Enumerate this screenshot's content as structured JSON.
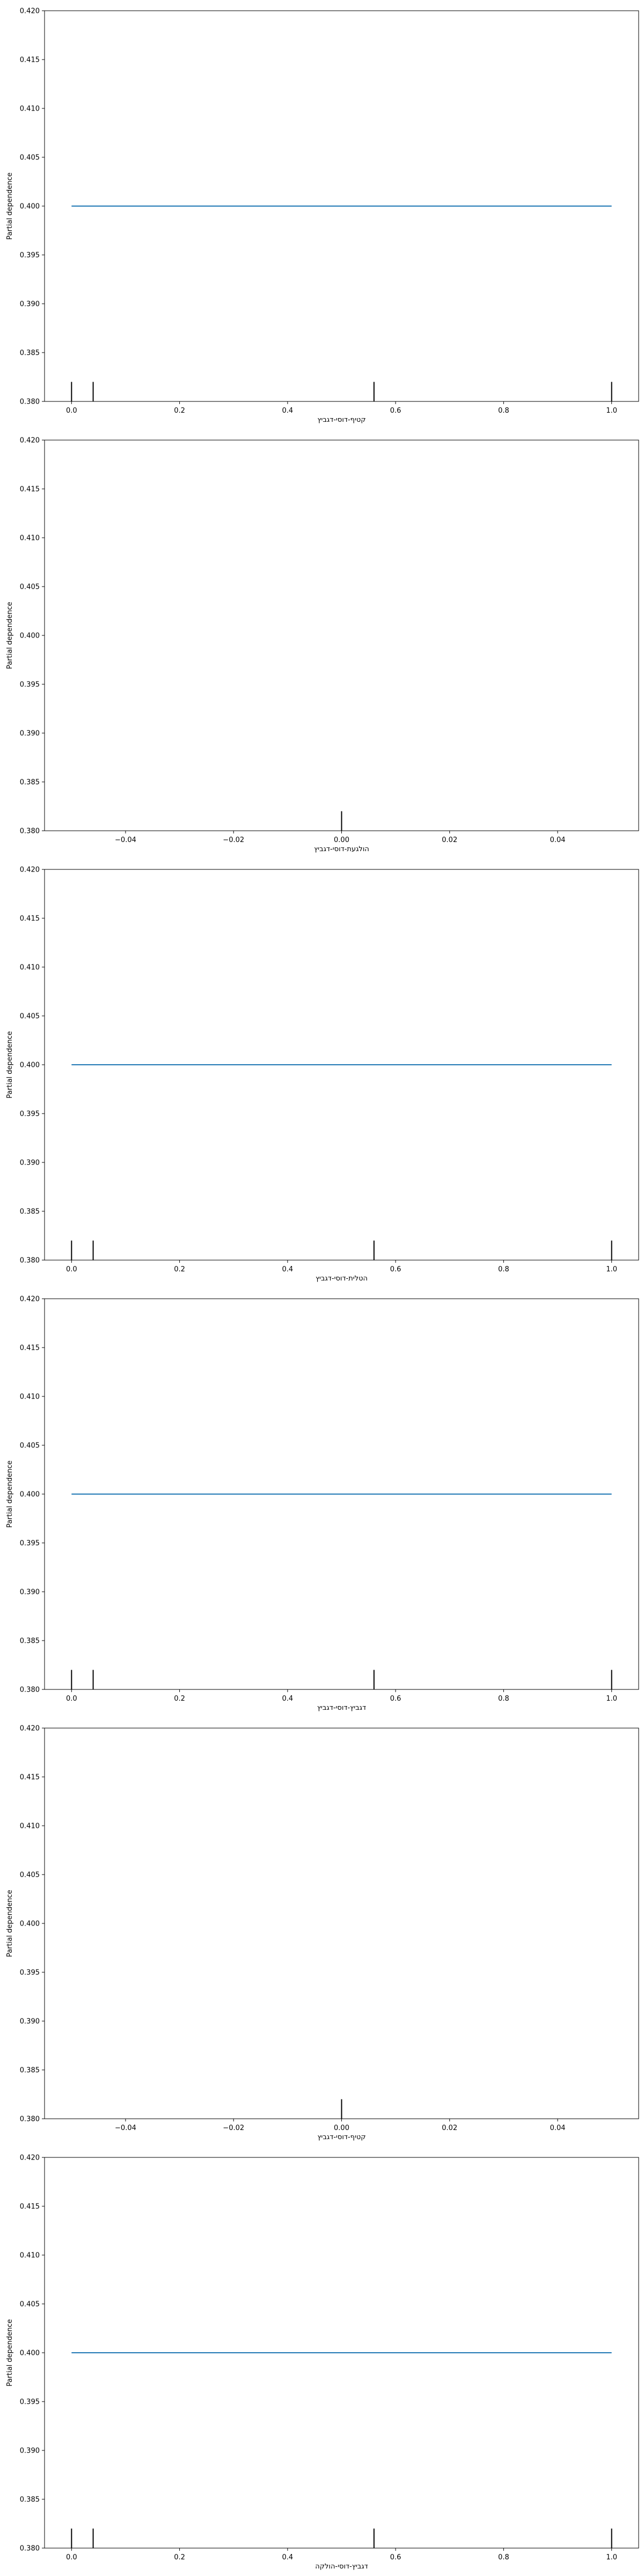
{
  "colors": {
    "line": "#1f77b4",
    "rug": "#000000",
    "axes": "#000000"
  },
  "chart_data": [
    {
      "type": "line",
      "title": "",
      "xlabel": "קטיף-דוסי-דגביץ",
      "ylabel": "Partial dependence",
      "xlim": [
        -0.05,
        1.05
      ],
      "ylim": [
        0.38,
        0.42
      ],
      "x_ticks": [
        "0.0",
        "0.2",
        "0.4",
        "0.6",
        "0.8",
        "1.0"
      ],
      "x_tick_values": [
        0.0,
        0.2,
        0.4,
        0.6,
        0.8,
        1.0
      ],
      "y_ticks": [
        "0.380",
        "0.385",
        "0.390",
        "0.395",
        "0.400",
        "0.405",
        "0.410",
        "0.415",
        "0.420"
      ],
      "y_tick_values": [
        0.38,
        0.385,
        0.39,
        0.395,
        0.4,
        0.405,
        0.41,
        0.415,
        0.42
      ],
      "series": [
        {
          "x": [
            0.0,
            1.0
          ],
          "y": [
            0.4,
            0.4
          ]
        }
      ],
      "rug": [
        0.0,
        0.04,
        0.56,
        1.0
      ],
      "grid": false
    },
    {
      "type": "line",
      "title": "",
      "xlabel": "הולגעת-דוסי-דגביץ",
      "ylabel": "Partial dependence",
      "xlim": [
        -0.055,
        0.055
      ],
      "ylim": [
        0.38,
        0.42
      ],
      "x_ticks": [
        "−0.04",
        "−0.02",
        "0.00",
        "0.02",
        "0.04"
      ],
      "x_tick_values": [
        -0.04,
        -0.02,
        0.0,
        0.02,
        0.04
      ],
      "y_ticks": [
        "0.380",
        "0.385",
        "0.390",
        "0.395",
        "0.400",
        "0.405",
        "0.410",
        "0.415",
        "0.420"
      ],
      "y_tick_values": [
        0.38,
        0.385,
        0.39,
        0.395,
        0.4,
        0.405,
        0.41,
        0.415,
        0.42
      ],
      "series": [],
      "rug": [
        0.0
      ],
      "grid": false
    },
    {
      "type": "line",
      "title": "",
      "xlabel": "הטלית-דוסי-דגביץ",
      "ylabel": "Partial dependence",
      "xlim": [
        -0.05,
        1.05
      ],
      "ylim": [
        0.38,
        0.42
      ],
      "x_ticks": [
        "0.0",
        "0.2",
        "0.4",
        "0.6",
        "0.8",
        "1.0"
      ],
      "x_tick_values": [
        0.0,
        0.2,
        0.4,
        0.6,
        0.8,
        1.0
      ],
      "y_ticks": [
        "0.380",
        "0.385",
        "0.390",
        "0.395",
        "0.400",
        "0.405",
        "0.410",
        "0.415",
        "0.420"
      ],
      "y_tick_values": [
        0.38,
        0.385,
        0.39,
        0.395,
        0.4,
        0.405,
        0.41,
        0.415,
        0.42
      ],
      "series": [
        {
          "x": [
            0.0,
            1.0
          ],
          "y": [
            0.4,
            0.4
          ]
        }
      ],
      "rug": [
        0.0,
        0.04,
        0.56,
        1.0
      ],
      "grid": false
    },
    {
      "type": "line",
      "title": "",
      "xlabel": "דגביץ-דוסי-דגביץ",
      "ylabel": "Partial dependence",
      "xlim": [
        -0.05,
        1.05
      ],
      "ylim": [
        0.38,
        0.42
      ],
      "x_ticks": [
        "0.0",
        "0.2",
        "0.4",
        "0.6",
        "0.8",
        "1.0"
      ],
      "x_tick_values": [
        0.0,
        0.2,
        0.4,
        0.6,
        0.8,
        1.0
      ],
      "y_ticks": [
        "0.380",
        "0.385",
        "0.390",
        "0.395",
        "0.400",
        "0.405",
        "0.410",
        "0.415",
        "0.420"
      ],
      "y_tick_values": [
        0.38,
        0.385,
        0.39,
        0.395,
        0.4,
        0.405,
        0.41,
        0.415,
        0.42
      ],
      "series": [
        {
          "x": [
            0.0,
            1.0
          ],
          "y": [
            0.4,
            0.4
          ]
        }
      ],
      "rug": [
        0.0,
        0.04,
        0.56,
        1.0
      ],
      "grid": false
    },
    {
      "type": "line",
      "title": "",
      "xlabel": "קטיף-דוסי-דגביץ",
      "ylabel": "Partial dependence",
      "xlim": [
        -0.055,
        0.055
      ],
      "ylim": [
        0.38,
        0.42
      ],
      "x_ticks": [
        "−0.04",
        "−0.02",
        "0.00",
        "0.02",
        "0.04"
      ],
      "x_tick_values": [
        -0.04,
        -0.02,
        0.0,
        0.02,
        0.04
      ],
      "y_ticks": [
        "0.380",
        "0.385",
        "0.390",
        "0.395",
        "0.400",
        "0.405",
        "0.410",
        "0.415",
        "0.420"
      ],
      "y_tick_values": [
        0.38,
        0.385,
        0.39,
        0.395,
        0.4,
        0.405,
        0.41,
        0.415,
        0.42
      ],
      "series": [],
      "rug": [
        0.0
      ],
      "grid": false
    },
    {
      "type": "line",
      "title": "",
      "xlabel": "דגביץ-דוסי-הולקה",
      "ylabel": "Partial dependence",
      "xlim": [
        -0.05,
        1.05
      ],
      "ylim": [
        0.38,
        0.42
      ],
      "x_ticks": [
        "0.0",
        "0.2",
        "0.4",
        "0.6",
        "0.8",
        "1.0"
      ],
      "x_tick_values": [
        0.0,
        0.2,
        0.4,
        0.6,
        0.8,
        1.0
      ],
      "y_ticks": [
        "0.380",
        "0.385",
        "0.390",
        "0.395",
        "0.400",
        "0.405",
        "0.410",
        "0.415",
        "0.420"
      ],
      "y_tick_values": [
        0.38,
        0.385,
        0.39,
        0.395,
        0.4,
        0.405,
        0.41,
        0.415,
        0.42
      ],
      "series": [
        {
          "x": [
            0.0,
            1.0
          ],
          "y": [
            0.4,
            0.4
          ]
        }
      ],
      "rug": [
        0.0,
        0.04,
        0.56,
        1.0
      ],
      "grid": false
    }
  ]
}
